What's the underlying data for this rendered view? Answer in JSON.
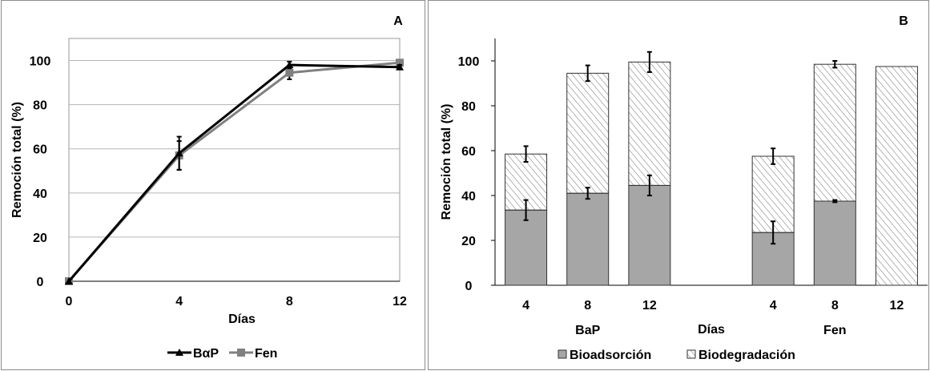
{
  "chart_data": [
    {
      "type": "line",
      "panel_label": "A",
      "xlabel": "Días",
      "ylabel": "Remoción total (%)",
      "x": [
        0,
        4,
        8,
        12
      ],
      "x_ticks": [
        "0",
        "4",
        "8",
        "12"
      ],
      "ylim": [
        0,
        110
      ],
      "y_ticks": [
        "0",
        "20",
        "40",
        "60",
        "80",
        "100"
      ],
      "grid": true,
      "legend_position": "bottom",
      "series": [
        {
          "name": "BαP",
          "marker": "triangle",
          "color": "#000000",
          "values": [
            0,
            58,
            98,
            97
          ],
          "errors": [
            0,
            7.5,
            1.5,
            1
          ]
        },
        {
          "name": "Fen",
          "marker": "square",
          "color": "#808080",
          "values": [
            0,
            57,
            94.5,
            99
          ],
          "errors": [
            0,
            6.5,
            3,
            1
          ]
        }
      ]
    },
    {
      "type": "bar",
      "stacked": true,
      "panel_label": "B",
      "xlabel": "Días",
      "ylabel": "Remoción total (%)",
      "groups": [
        {
          "label": "BaP",
          "categories": [
            "4",
            "8",
            "12"
          ]
        },
        {
          "label": "Fen",
          "categories": [
            "4",
            "8",
            "12"
          ]
        }
      ],
      "ylim": [
        0,
        110
      ],
      "y_ticks": [
        "0",
        "20",
        "40",
        "60",
        "80",
        "100"
      ],
      "grid": false,
      "legend_position": "bottom",
      "series": [
        {
          "name": "Bioadsorción",
          "fill": "#a6a6a6",
          "values": [
            33.5,
            41,
            44.5,
            23.5,
            37.5,
            0
          ],
          "errors": [
            4.5,
            2.5,
            4.5,
            5,
            0.5,
            0
          ]
        },
        {
          "name": "Biodegradación",
          "fill": "hatched",
          "values": [
            25,
            53.5,
            55,
            34,
            61,
            97.5
          ],
          "errors": [
            3.5,
            3.5,
            4.5,
            3.5,
            1.5,
            0
          ]
        }
      ]
    }
  ]
}
